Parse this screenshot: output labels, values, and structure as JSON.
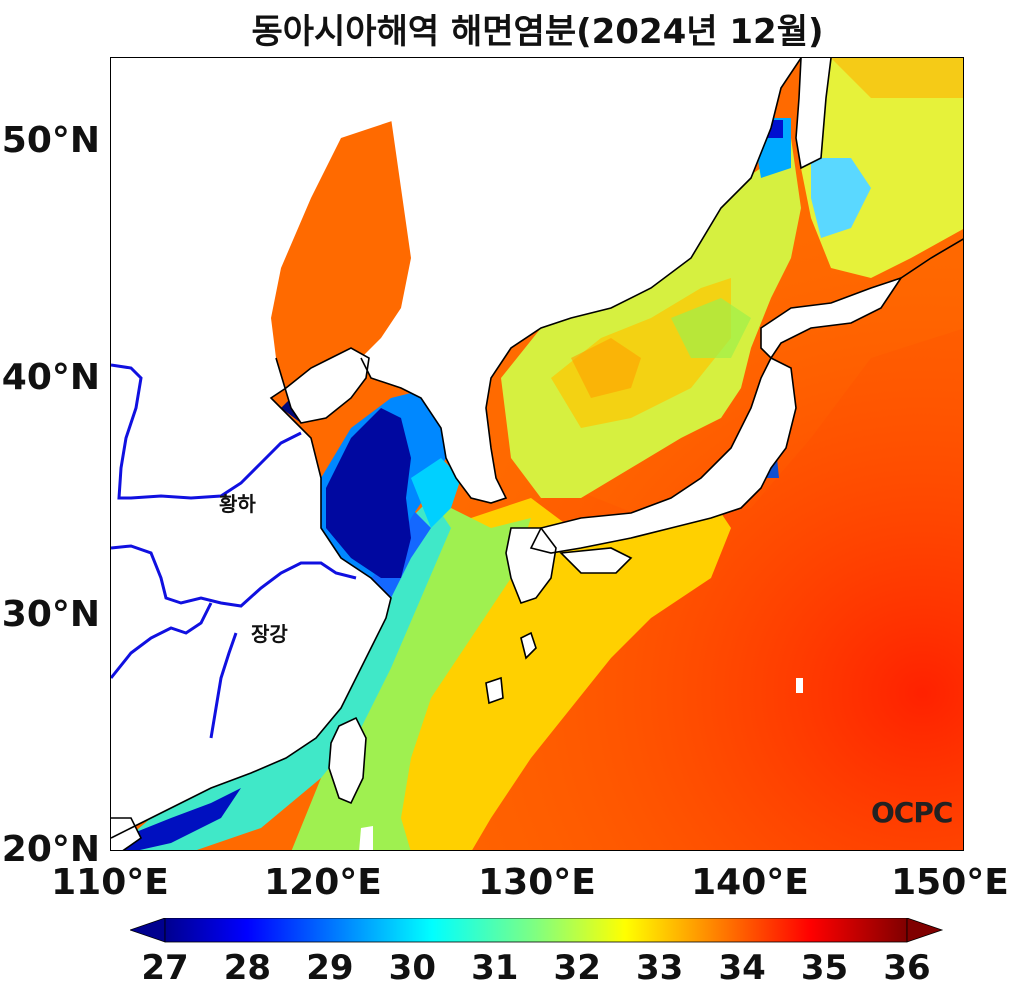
{
  "title": "동아시아해역 해면염분(2024년 12월)",
  "axes": {
    "x_ticks": [
      "110°E",
      "120°E",
      "130°E",
      "140°E",
      "150°E"
    ],
    "y_ticks": [
      "50°N",
      "40°N",
      "30°N",
      "20°N"
    ]
  },
  "rivers": [
    {
      "name": "황하"
    },
    {
      "name": "장강"
    }
  ],
  "brand": "OCPC",
  "colorbar": {
    "ticks": [
      "27",
      "28",
      "29",
      "30",
      "31",
      "32",
      "33",
      "34",
      "35",
      "36"
    ],
    "min": 27,
    "max": 36,
    "colormap": "jet",
    "extend": "both"
  },
  "colors": {
    "low": "#00008b",
    "mid": "#ffff00",
    "high": "#ff2a00",
    "coast": "#000000",
    "river": "#1010e0"
  }
}
